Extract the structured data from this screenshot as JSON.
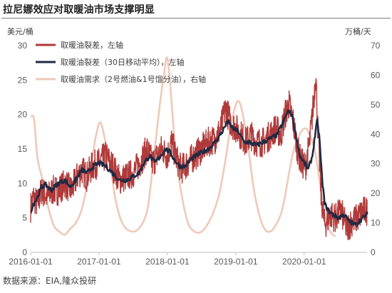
{
  "title": "拉尼娜效应对取暖油市场支撑明显",
  "source": "数据来源：EIA,隆众投研",
  "colors": {
    "crack": "#b03a3a",
    "crack_ma": "#1f2a44",
    "demand": "#efc9b8",
    "axis": "#bfbfbf"
  },
  "chart_data": {
    "type": "line",
    "left_unit": "美元/桶",
    "right_unit": "万桶/天",
    "left_ylim": [
      0,
      30
    ],
    "left_ticks": [
      0,
      5,
      10,
      15,
      20,
      25,
      30
    ],
    "right_ylim": [
      0,
      70
    ],
    "right_ticks": [
      0,
      10,
      20,
      30,
      40,
      50,
      60,
      70
    ],
    "x_range": [
      2016.0,
      2020.92
    ],
    "x_ticks": [
      {
        "t": 2016.0,
        "label": "2016-01-01"
      },
      {
        "t": 2017.0,
        "label": "2017-01-01"
      },
      {
        "t": 2018.0,
        "label": "2018-01-01"
      },
      {
        "t": 2019.0,
        "label": "2019-01-01"
      },
      {
        "t": 2020.0,
        "label": "2020-01-01"
      }
    ],
    "legend": [
      {
        "key": "crack",
        "label": "取暖油裂差，左轴"
      },
      {
        "key": "crack_ma",
        "label": "取暖油裂差（30日移动平均），左轴"
      },
      {
        "key": "demand",
        "label": "取暖油需求（2号燃油&1号馏分油），右轴"
      }
    ],
    "series": [
      {
        "key": "crack",
        "axis": "left",
        "noise": 2.2,
        "points": [
          [
            2016.0,
            6.5
          ],
          [
            2016.04,
            8
          ],
          [
            2016.1,
            7
          ],
          [
            2016.16,
            9
          ],
          [
            2016.2,
            8.5
          ],
          [
            2016.25,
            8
          ],
          [
            2016.32,
            9
          ],
          [
            2016.4,
            9
          ],
          [
            2016.5,
            10
          ],
          [
            2016.6,
            9
          ],
          [
            2016.68,
            11
          ],
          [
            2016.75,
            12
          ],
          [
            2016.82,
            11
          ],
          [
            2016.9,
            12.5
          ],
          [
            2017.0,
            13
          ],
          [
            2017.1,
            14
          ],
          [
            2017.2,
            12.5
          ],
          [
            2017.3,
            10.5
          ],
          [
            2017.4,
            11
          ],
          [
            2017.5,
            11.5
          ],
          [
            2017.6,
            13
          ],
          [
            2017.7,
            15
          ],
          [
            2017.78,
            13
          ],
          [
            2017.85,
            14
          ],
          [
            2017.92,
            15
          ],
          [
            2018.0,
            14
          ],
          [
            2018.06,
            16
          ],
          [
            2018.12,
            14
          ],
          [
            2018.2,
            12
          ],
          [
            2018.3,
            13
          ],
          [
            2018.4,
            14
          ],
          [
            2018.5,
            15
          ],
          [
            2018.6,
            16
          ],
          [
            2018.7,
            16.5
          ],
          [
            2018.78,
            18
          ],
          [
            2018.85,
            21
          ],
          [
            2018.92,
            19
          ],
          [
            2019.0,
            18
          ],
          [
            2019.08,
            17
          ],
          [
            2019.15,
            16
          ],
          [
            2019.22,
            17
          ],
          [
            2019.3,
            16
          ],
          [
            2019.4,
            16
          ],
          [
            2019.5,
            17
          ],
          [
            2019.58,
            18
          ],
          [
            2019.66,
            17
          ],
          [
            2019.72,
            20
          ],
          [
            2019.78,
            21.5
          ],
          [
            2019.84,
            19
          ],
          [
            2019.9,
            15
          ],
          [
            2019.96,
            13
          ],
          [
            2020.02,
            12.5
          ],
          [
            2020.08,
            16
          ],
          [
            2020.14,
            22
          ],
          [
            2020.17,
            26
          ],
          [
            2020.2,
            18
          ],
          [
            2020.25,
            8
          ],
          [
            2020.3,
            4
          ],
          [
            2020.38,
            5.5
          ],
          [
            2020.46,
            5
          ],
          [
            2020.54,
            6
          ],
          [
            2020.62,
            3.5
          ],
          [
            2020.7,
            4.5
          ],
          [
            2020.78,
            5
          ],
          [
            2020.86,
            6
          ],
          [
            2020.92,
            6
          ]
        ]
      },
      {
        "key": "crack_ma",
        "axis": "left",
        "noise": 0.35,
        "points": [
          [
            2016.0,
            6
          ],
          [
            2016.04,
            7
          ],
          [
            2016.1,
            8
          ],
          [
            2016.16,
            9.5
          ],
          [
            2016.22,
            9.8
          ],
          [
            2016.3,
            9
          ],
          [
            2016.4,
            10
          ],
          [
            2016.5,
            10.5
          ],
          [
            2016.58,
            9.5
          ],
          [
            2016.66,
            10.5
          ],
          [
            2016.75,
            12
          ],
          [
            2016.83,
            11.5
          ],
          [
            2016.92,
            12.5
          ],
          [
            2017.0,
            13
          ],
          [
            2017.1,
            12.5
          ],
          [
            2017.2,
            11.5
          ],
          [
            2017.3,
            10.5
          ],
          [
            2017.4,
            10.5
          ],
          [
            2017.5,
            11
          ],
          [
            2017.58,
            11.5
          ],
          [
            2017.66,
            13
          ],
          [
            2017.74,
            14
          ],
          [
            2017.82,
            13
          ],
          [
            2017.9,
            14
          ],
          [
            2017.97,
            15
          ],
          [
            2018.04,
            14.5
          ],
          [
            2018.1,
            13.5
          ],
          [
            2018.18,
            12.5
          ],
          [
            2018.26,
            12.5
          ],
          [
            2018.34,
            13.5
          ],
          [
            2018.42,
            14
          ],
          [
            2018.5,
            14.5
          ],
          [
            2018.6,
            15
          ],
          [
            2018.7,
            16
          ],
          [
            2018.8,
            17.5
          ],
          [
            2018.88,
            19
          ],
          [
            2018.96,
            18
          ],
          [
            2019.04,
            17.5
          ],
          [
            2019.12,
            16
          ],
          [
            2019.2,
            16
          ],
          [
            2019.3,
            15.5
          ],
          [
            2019.4,
            16
          ],
          [
            2019.5,
            16.5
          ],
          [
            2019.6,
            17
          ],
          [
            2019.7,
            19
          ],
          [
            2019.76,
            20.5
          ],
          [
            2019.82,
            20
          ],
          [
            2019.88,
            17
          ],
          [
            2019.94,
            14
          ],
          [
            2020.0,
            13
          ],
          [
            2020.06,
            12
          ],
          [
            2020.12,
            14
          ],
          [
            2020.16,
            17
          ],
          [
            2020.19,
            19
          ],
          [
            2020.22,
            17
          ],
          [
            2020.26,
            11
          ],
          [
            2020.3,
            7
          ],
          [
            2020.36,
            6
          ],
          [
            2020.42,
            5.5
          ],
          [
            2020.5,
            5
          ],
          [
            2020.58,
            5.5
          ],
          [
            2020.66,
            4.5
          ],
          [
            2020.74,
            4
          ],
          [
            2020.8,
            4.5
          ],
          [
            2020.86,
            5
          ],
          [
            2020.92,
            5.5
          ]
        ]
      },
      {
        "key": "demand",
        "axis": "right",
        "noise": 0,
        "points": [
          [
            2016.0,
            46
          ],
          [
            2016.05,
            45
          ],
          [
            2016.1,
            32
          ],
          [
            2016.18,
            24
          ],
          [
            2016.26,
            15
          ],
          [
            2016.34,
            9
          ],
          [
            2016.42,
            7
          ],
          [
            2016.5,
            6
          ],
          [
            2016.58,
            8
          ],
          [
            2016.66,
            10
          ],
          [
            2016.74,
            14
          ],
          [
            2016.82,
            22
          ],
          [
            2016.9,
            32
          ],
          [
            2016.96,
            40
          ],
          [
            2017.02,
            44
          ],
          [
            2017.08,
            39
          ],
          [
            2017.16,
            30
          ],
          [
            2017.24,
            18
          ],
          [
            2017.32,
            11
          ],
          [
            2017.4,
            8
          ],
          [
            2017.5,
            7
          ],
          [
            2017.58,
            8
          ],
          [
            2017.66,
            11
          ],
          [
            2017.72,
            16
          ],
          [
            2017.78,
            28
          ],
          [
            2017.84,
            40
          ],
          [
            2017.9,
            52
          ],
          [
            2017.95,
            60
          ],
          [
            2017.99,
            66
          ],
          [
            2018.03,
            60
          ],
          [
            2018.08,
            45
          ],
          [
            2018.14,
            30
          ],
          [
            2018.22,
            18
          ],
          [
            2018.3,
            10
          ],
          [
            2018.4,
            7
          ],
          [
            2018.5,
            7
          ],
          [
            2018.6,
            10
          ],
          [
            2018.68,
            14
          ],
          [
            2018.76,
            20
          ],
          [
            2018.84,
            30
          ],
          [
            2018.92,
            42
          ],
          [
            2019.0,
            50
          ],
          [
            2019.05,
            51
          ],
          [
            2019.1,
            47
          ],
          [
            2019.18,
            36
          ],
          [
            2019.26,
            22
          ],
          [
            2019.34,
            13
          ],
          [
            2019.42,
            8
          ],
          [
            2019.5,
            7
          ],
          [
            2019.58,
            9
          ],
          [
            2019.66,
            13
          ],
          [
            2019.72,
            19
          ],
          [
            2019.78,
            27
          ],
          [
            2019.84,
            34
          ],
          [
            2019.9,
            38
          ],
          [
            2019.96,
            41
          ],
          [
            2020.02,
            42
          ],
          [
            2020.08,
            40
          ],
          [
            2020.16,
            34
          ],
          [
            2020.24,
            22
          ],
          [
            2020.3,
            13
          ],
          [
            2020.36,
            8
          ],
          [
            2020.42,
            6
          ],
          [
            2020.46,
            5.5
          ]
        ]
      }
    ]
  }
}
